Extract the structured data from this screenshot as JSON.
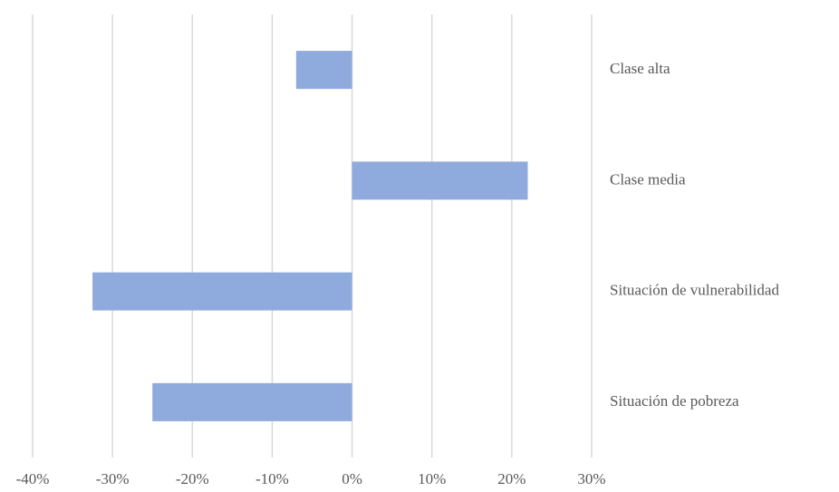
{
  "chart_data": {
    "type": "bar",
    "orientation": "horizontal",
    "categories": [
      "Clase alta",
      "Clase media",
      "Situación de vulnerabilidad",
      "Situación de pobreza"
    ],
    "values": [
      -7,
      22,
      -32.5,
      -25
    ],
    "color": "#8faadc",
    "xlim": [
      -40,
      30
    ],
    "xticks": [
      {
        "value": -40,
        "label": "-40%"
      },
      {
        "value": -30,
        "label": "-30%"
      },
      {
        "value": -20,
        "label": "-20%"
      },
      {
        "value": -10,
        "label": "-10%"
      },
      {
        "value": 0,
        "label": "0%"
      },
      {
        "value": 10,
        "label": "10%"
      },
      {
        "value": 20,
        "label": "20%"
      },
      {
        "value": 30,
        "label": "30%"
      }
    ],
    "grid": true
  }
}
